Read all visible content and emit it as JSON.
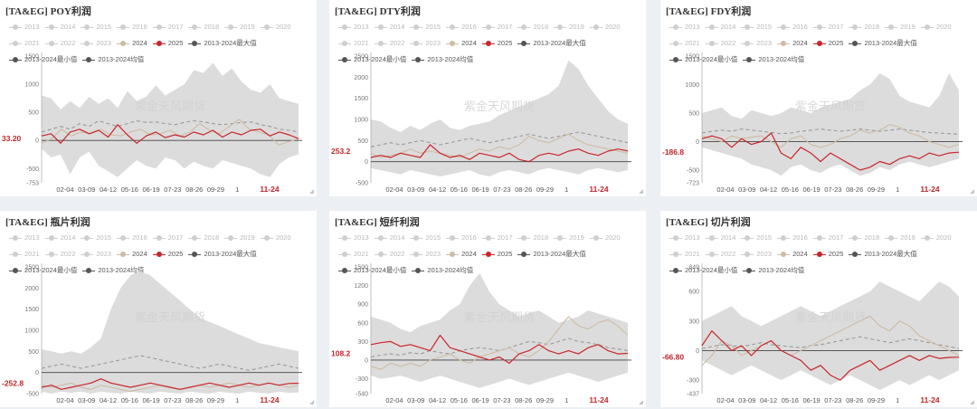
{
  "colors": {
    "y2025": "#c8262b",
    "y2024": "#cdbca6",
    "band": "#dcdcdc",
    "avg": "#9a9a9a",
    "legend_off": "#cfcfcf",
    "legend_dark": "#555555",
    "current_label": "#c0262b"
  },
  "watermark": "紫金天风期货",
  "legend": {
    "row1": [
      "2013",
      "2014",
      "2015",
      "2016",
      "2017",
      "2018",
      "2019",
      "2020"
    ],
    "row2": [
      "2021",
      "2022",
      "2023",
      "2024",
      "2025",
      "2013-2024最大值"
    ],
    "row3": [
      "2013-2024最小值",
      "2013-2024均值"
    ]
  },
  "x_ticks": [
    "02-04",
    "03-09",
    "04-12",
    "05-16",
    "06-19",
    "07-23",
    "08-26",
    "09-29",
    "1",
    "11-24"
  ],
  "chart_data": [
    {
      "title": "[TA&EG] POY利润",
      "type": "line",
      "y_ticks": [
        1500,
        1000,
        500,
        0,
        -500,
        -753
      ],
      "ylim": [
        -753,
        1500
      ],
      "current_label": "33.20",
      "current_value": 33.2,
      "series": [
        {
          "name": "2025",
          "values": [
            80,
            120,
            -50,
            150,
            200,
            120,
            180,
            60,
            280,
            100,
            -50,
            80,
            150,
            50,
            100,
            60,
            150,
            100,
            180,
            60,
            150,
            100,
            180,
            200,
            80,
            150,
            100,
            33
          ]
        },
        {
          "name": "2024",
          "values": [
            -50,
            30,
            200,
            80,
            150,
            120,
            200,
            100,
            80,
            150,
            200,
            100,
            120,
            180,
            80,
            150,
            300,
            180,
            120,
            250,
            380,
            200,
            150,
            100,
            -80,
            -20,
            30
          ]
        },
        {
          "name": "2013-2024最大值",
          "values": [
            800,
            750,
            550,
            700,
            580,
            780,
            650,
            750,
            580,
            880,
            700,
            780,
            980,
            800,
            900,
            1000,
            1250,
            1200,
            1380,
            1150,
            1280,
            1050,
            900,
            850,
            1000,
            750,
            700,
            650
          ]
        },
        {
          "name": "2013-2024最小值",
          "values": [
            -150,
            -300,
            -250,
            -600,
            -300,
            -200,
            -450,
            -550,
            -650,
            -500,
            -350,
            -450,
            -500,
            -300,
            -350,
            -500,
            -380,
            -450,
            -500,
            -350,
            -400,
            -450,
            -500,
            -600,
            -650,
            -420,
            -300,
            -250
          ]
        },
        {
          "name": "2013-2024均值",
          "values": [
            150,
            200,
            250,
            200,
            300,
            250,
            350,
            300,
            250,
            300,
            350,
            320,
            330,
            300,
            280,
            320,
            350,
            330,
            300,
            280,
            300,
            320,
            330,
            280,
            250,
            200,
            180,
            150
          ]
        }
      ]
    },
    {
      "title": "[TA&EG] DTY利润",
      "type": "line",
      "y_ticks": [
        2500,
        2000,
        1500,
        1000,
        500,
        0,
        -500
      ],
      "ylim": [
        -500,
        2500
      ],
      "current_label": "253.2",
      "current_value": 253.2,
      "series": [
        {
          "name": "2025",
          "values": [
            100,
            150,
            100,
            200,
            150,
            100,
            400,
            200,
            100,
            150,
            50,
            200,
            150,
            100,
            200,
            50,
            0,
            150,
            200,
            150,
            250,
            300,
            200,
            150,
            250,
            300,
            253
          ]
        },
        {
          "name": "2024",
          "values": [
            200,
            100,
            150,
            200,
            300,
            200,
            250,
            200,
            150,
            100,
            200,
            300,
            250,
            350,
            300,
            400,
            600,
            500,
            450,
            550,
            650,
            500,
            400,
            350,
            300,
            250,
            200
          ]
        },
        {
          "name": "2013-2024最大值",
          "values": [
            1000,
            950,
            800,
            700,
            850,
            750,
            900,
            1000,
            800,
            750,
            850,
            900,
            950,
            1100,
            1200,
            1300,
            1400,
            1500,
            1600,
            1800,
            2400,
            2200,
            1800,
            1500,
            1200,
            1000,
            900
          ]
        },
        {
          "name": "2013-2024最小值",
          "values": [
            -150,
            -200,
            -250,
            -300,
            -200,
            -250,
            -300,
            -350,
            -300,
            -250,
            -200,
            -300,
            -350,
            -250,
            -200,
            -250,
            -300,
            -200,
            -150,
            -200,
            -250,
            -300,
            -200,
            -150,
            -200,
            -250,
            -200
          ]
        },
        {
          "name": "2013-2024均值",
          "values": [
            350,
            400,
            450,
            400,
            450,
            500,
            450,
            400,
            450,
            500,
            550,
            500,
            450,
            500,
            550,
            600,
            650,
            600,
            550,
            600,
            650,
            700,
            650,
            600,
            550,
            500,
            450
          ]
        }
      ]
    },
    {
      "title": "[TA&EG] FDY利润",
      "type": "line",
      "y_ticks": [
        1500,
        1000,
        500,
        0,
        -500,
        -723
      ],
      "ylim": [
        -723,
        1500
      ],
      "current_label": "-186.8",
      "current_value": -186.8,
      "series": [
        {
          "name": "2025",
          "values": [
            50,
            100,
            50,
            -100,
            50,
            -50,
            0,
            150,
            -200,
            -300,
            -100,
            -200,
            -350,
            -200,
            -300,
            -400,
            -500,
            -450,
            -350,
            -400,
            -300,
            -250,
            -300,
            -200,
            -250,
            -200,
            -187
          ]
        },
        {
          "name": "2024",
          "values": [
            100,
            50,
            0,
            100,
            50,
            80,
            100,
            0,
            -100,
            50,
            100,
            -50,
            -100,
            -50,
            50,
            100,
            200,
            150,
            200,
            300,
            250,
            150,
            100,
            0,
            -50,
            -100,
            -50
          ]
        },
        {
          "name": "2013-2024最大值",
          "values": [
            500,
            550,
            600,
            450,
            400,
            550,
            500,
            450,
            500,
            600,
            550,
            500,
            600,
            650,
            700,
            750,
            900,
            1000,
            1200,
            1100,
            800,
            700,
            650,
            600,
            800,
            1200,
            900
          ]
        },
        {
          "name": "2013-2024最小值",
          "values": [
            -100,
            -150,
            -200,
            -250,
            -300,
            -400,
            -450,
            -500,
            -600,
            -450,
            -400,
            -500,
            -550,
            -450,
            -400,
            -500,
            -600,
            -550,
            -450,
            -500,
            -400,
            -350,
            -400,
            -450,
            -400,
            -350,
            -300
          ]
        },
        {
          "name": "2013-2024均值",
          "values": [
            150,
            180,
            200,
            180,
            220,
            200,
            180,
            160,
            140,
            150,
            180,
            200,
            220,
            200,
            180,
            200,
            220,
            200,
            180,
            200,
            220,
            200,
            180,
            160,
            150,
            140,
            130
          ]
        }
      ]
    },
    {
      "title": "[TA&EG] 瓶片利润",
      "type": "line",
      "y_ticks": [
        2500,
        2000,
        1500,
        1000,
        500,
        0,
        -500
      ],
      "ylim": [
        -500,
        2500
      ],
      "current_label": "-252.8",
      "current_value": -252.8,
      "series": [
        {
          "name": "2025",
          "values": [
            -350,
            -300,
            -400,
            -350,
            -300,
            -250,
            -150,
            -250,
            -300,
            -350,
            -300,
            -250,
            -300,
            -350,
            -400,
            -350,
            -300,
            -250,
            -300,
            -350,
            -300,
            -250,
            -300,
            -250,
            -300,
            -260,
            -253
          ]
        },
        {
          "name": "2024",
          "values": [
            -300,
            -350,
            -300,
            -250,
            -350,
            -400,
            -300,
            -350,
            -400,
            -450,
            -400,
            -350,
            -300,
            -350,
            -400,
            -350,
            -300,
            -350,
            -300,
            -250,
            -300,
            -350,
            -300,
            -250,
            -300,
            -350,
            -300
          ]
        },
        {
          "name": "2013-2024最大值",
          "values": [
            550,
            500,
            450,
            500,
            450,
            600,
            800,
            1500,
            2000,
            2300,
            2400,
            2300,
            2100,
            1900,
            1700,
            1500,
            1300,
            1200,
            1100,
            1000,
            900,
            800,
            700,
            650,
            600,
            550,
            500
          ]
        },
        {
          "name": "2013-2024最小值",
          "values": [
            -450,
            -500,
            -450,
            -480,
            -450,
            -500,
            -450,
            -480,
            -500,
            -450,
            -480,
            -500,
            -450,
            -480,
            -500,
            -450,
            -480,
            -500,
            -450,
            -480,
            -500,
            -450,
            -480,
            -500,
            -450,
            -480,
            -470
          ]
        },
        {
          "name": "2013-2024均值",
          "values": [
            100,
            150,
            200,
            150,
            100,
            150,
            200,
            250,
            300,
            350,
            400,
            350,
            300,
            250,
            200,
            150,
            100,
            150,
            200,
            150,
            100,
            50,
            100,
            150,
            200,
            150,
            100
          ]
        }
      ]
    },
    {
      "title": "[TA&EG] 短纤利润",
      "type": "line",
      "y_ticks": [
        1500,
        1200,
        900,
        600,
        300,
        0,
        -300,
        -540
      ],
      "ylim": [
        -540,
        1500
      ],
      "current_label": "108.2",
      "current_value": 108.2,
      "series": [
        {
          "name": "2025",
          "values": [
            250,
            280,
            300,
            220,
            250,
            200,
            150,
            400,
            200,
            150,
            100,
            50,
            0,
            50,
            -50,
            100,
            150,
            250,
            150,
            100,
            150,
            100,
            200,
            250,
            150,
            100,
            108
          ]
        },
        {
          "name": "2024",
          "values": [
            -100,
            -150,
            -50,
            -100,
            -50,
            -100,
            0,
            50,
            100,
            0,
            -50,
            50,
            100,
            150,
            200,
            100,
            50,
            150,
            300,
            500,
            700,
            550,
            500,
            600,
            650,
            550,
            400
          ]
        },
        {
          "name": "2013-2024最大值",
          "values": [
            700,
            650,
            600,
            500,
            450,
            550,
            600,
            650,
            800,
            900,
            1200,
            1400,
            1100,
            900,
            800,
            700,
            750,
            800,
            700,
            600,
            650,
            700,
            800,
            750,
            700,
            650,
            600
          ]
        },
        {
          "name": "2013-2024最小值",
          "values": [
            -250,
            -300,
            -280,
            -250,
            -300,
            -350,
            -300,
            -250,
            -300,
            -350,
            -400,
            -450,
            -400,
            -350,
            -300,
            -350,
            -400,
            -350,
            -300,
            -250,
            -200,
            -250,
            -300,
            -350,
            -300,
            -250,
            -200
          ]
        },
        {
          "name": "2013-2024均值",
          "values": [
            50,
            80,
            100,
            80,
            120,
            100,
            150,
            120,
            100,
            150,
            180,
            200,
            180,
            150,
            200,
            250,
            300,
            280,
            250,
            300,
            350,
            300,
            280,
            250,
            200,
            180,
            150
          ]
        }
      ]
    },
    {
      "title": "[TA&EG] 切片利润",
      "type": "line",
      "y_ticks": [
        849,
        600,
        300,
        0,
        -300,
        -437
      ],
      "ylim": [
        -437,
        849
      ],
      "current_label": "-66.80",
      "current_value": -66.8,
      "series": [
        {
          "name": "2025",
          "values": [
            50,
            200,
            100,
            0,
            50,
            -50,
            50,
            100,
            0,
            -50,
            -100,
            -200,
            -150,
            -250,
            -300,
            -200,
            -150,
            -100,
            -200,
            -150,
            -100,
            -50,
            -100,
            -50,
            -80,
            -70,
            -67
          ]
        },
        {
          "name": "2024",
          "values": [
            -150,
            -50,
            100,
            50,
            -50,
            0,
            50,
            100,
            0,
            -50,
            0,
            50,
            100,
            150,
            200,
            250,
            300,
            350,
            250,
            200,
            300,
            250,
            150,
            100,
            50,
            0,
            -50
          ]
        },
        {
          "name": "2013-2024最大值",
          "values": [
            300,
            350,
            400,
            450,
            350,
            300,
            250,
            300,
            350,
            400,
            450,
            400,
            350,
            400,
            450,
            500,
            550,
            600,
            700,
            650,
            600,
            550,
            500,
            600,
            700,
            650,
            550
          ]
        },
        {
          "name": "2013-2024最小值",
          "values": [
            -100,
            -150,
            -200,
            -250,
            -200,
            -150,
            -200,
            -250,
            -300,
            -250,
            -200,
            -250,
            -300,
            -350,
            -300,
            -250,
            -300,
            -350,
            -400,
            -350,
            -300,
            -350,
            -300,
            -250,
            -300,
            -250,
            -200
          ]
        },
        {
          "name": "2013-2024均值",
          "values": [
            20,
            40,
            60,
            50,
            40,
            60,
            80,
            60,
            50,
            40,
            30,
            50,
            60,
            80,
            100,
            120,
            140,
            120,
            100,
            80,
            100,
            120,
            100,
            80,
            60,
            40,
            20
          ]
        }
      ]
    }
  ]
}
